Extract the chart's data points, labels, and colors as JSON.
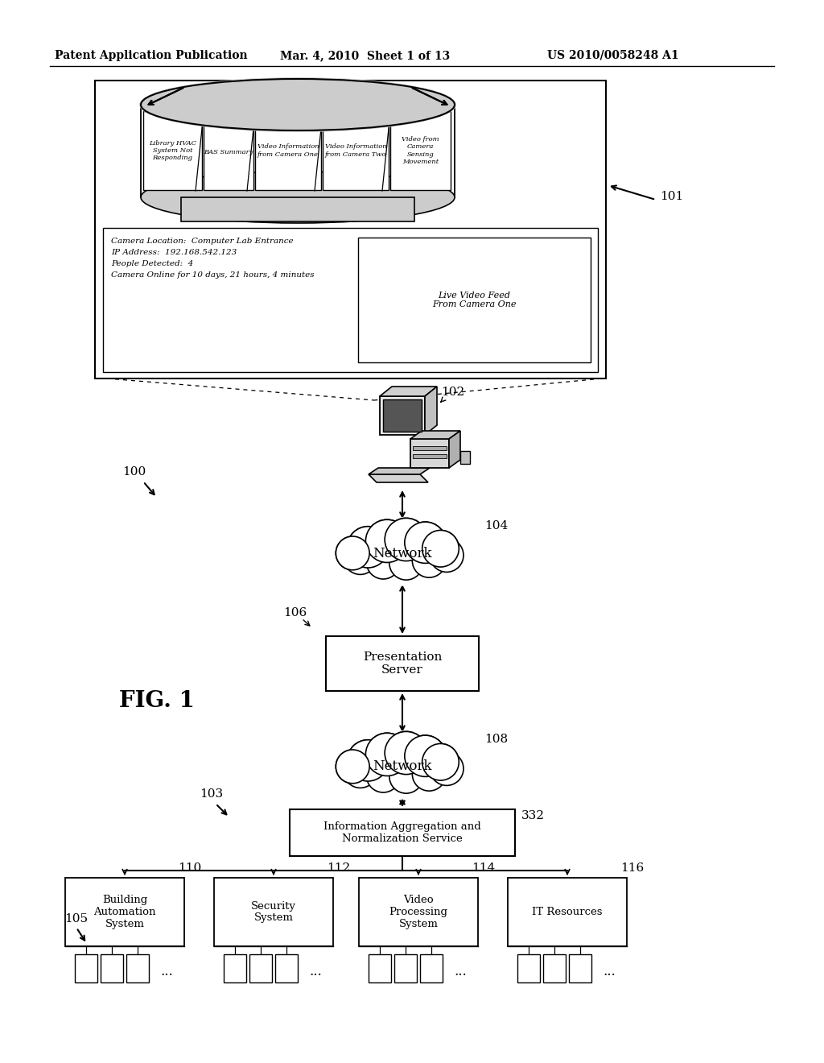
{
  "bg_color": "#ffffff",
  "header_left": "Patent Application Publication",
  "header_mid": "Mar. 4, 2010  Sheet 1 of 13",
  "header_right": "US 2010/0058248 A1",
  "fig_label": "FIG. 1",
  "label_100": "100",
  "label_101": "101",
  "label_102": "102",
  "label_103": "103",
  "label_104": "104",
  "label_105": "105",
  "label_106": "106",
  "label_108": "108",
  "label_110": "110",
  "label_112": "112",
  "label_114": "114",
  "label_116": "116",
  "label_332": "332",
  "network1_text": "Network",
  "presentation_server_text": "Presentation\nServer",
  "network2_text": "Network",
  "ians_text": "Information Aggregation and\nNormalization Service",
  "bas_text": "Building\nAutomation\nSystem",
  "sec_text": "Security\nSystem",
  "vps_text": "Video\nProcessing\nSystem",
  "it_text": "IT Resources",
  "carousel_tabs": [
    "Library HVAC\nSystem Not\nResponding",
    "BAS Summary",
    "Video Information\nfrom Camera One",
    "Video Information\nfrom Camera Two",
    "Video from\nCamera\nSensing\nMovement"
  ],
  "detail_text": "Camera Location:  Computer Lab Entrance\nIP Address:  192.168.542.123\nPeople Detected:  4\nCamera Online for 10 days, 21 hours, 4 minutes",
  "live_feed_text": "Live Video Feed\nFrom Camera One"
}
